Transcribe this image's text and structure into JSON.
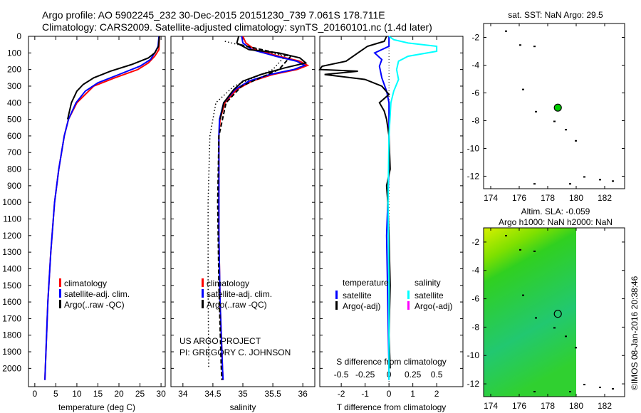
{
  "header": {
    "line1": "Argo profile: AO 5902245_232 30-Dec-2015 20151230_739 7.061S 178.711E",
    "line2": "Climatology: CARS2009. Satellite-adjusted climatology: synTS_20160101.nc (1.4d later)"
  },
  "credit": {
    "project": "US ARGO PROJECT",
    "pi": "PI: GREGORY C. JOHNSON",
    "stamp": "©IMOS 08-Jan-2016 20:38:46"
  },
  "colors": {
    "climatology": "#ff0000",
    "satellite": "#0000ff",
    "argo": "#000000",
    "sal_sat": "#00ffff",
    "sal_argo": "#ff00ff",
    "float": "#00cc00"
  },
  "chart_data": [
    {
      "type": "line",
      "title": "",
      "xlabel": "temperature (deg C)",
      "ylabel": "",
      "xlim": [
        -1.5,
        31
      ],
      "ylim": [
        2110,
        0
      ],
      "xticks": [
        0,
        5,
        10,
        15,
        20,
        25,
        30
      ],
      "yticks": [
        0,
        100,
        200,
        300,
        400,
        500,
        600,
        700,
        800,
        900,
        1000,
        1100,
        1200,
        1300,
        1400,
        1500,
        1600,
        1700,
        1800,
        1900,
        2000
      ],
      "legend": [
        "climatology",
        "satellite-adj. clim.",
        "Argo(..raw -QC)"
      ],
      "series": [
        {
          "name": "climatology",
          "color": "#ff0000",
          "depth": [
            0,
            80,
            120,
            160,
            200,
            250,
            300,
            400,
            500,
            600,
            800,
            1000,
            1300,
            1600,
            2000,
            2070
          ],
          "values": [
            29.6,
            29.5,
            28.5,
            27,
            24.5,
            19,
            14,
            10,
            8,
            7,
            5.7,
            4.7,
            3.8,
            3.1,
            2.5,
            2.4
          ]
        },
        {
          "name": "satellite-adj. clim.",
          "color": "#0000ff",
          "depth": [
            0,
            60,
            100,
            140,
            180,
            230,
            280,
            330,
            400,
            500,
            600,
            800,
            1000,
            1300,
            1600,
            2000,
            2070
          ],
          "values": [
            29.5,
            29.3,
            28.5,
            27.5,
            25,
            20,
            15,
            12,
            9.8,
            8,
            7,
            5.7,
            4.7,
            3.8,
            3.1,
            2.5,
            2.4
          ]
        },
        {
          "name": "Argo(..raw -QC)",
          "color": "#000000",
          "depth": [
            0,
            60,
            100,
            130,
            170,
            210,
            250,
            290,
            330,
            400,
            500
          ],
          "values": [
            29.6,
            29.4,
            28.5,
            27,
            23,
            18,
            14,
            11.5,
            10,
            8.7,
            7.8
          ]
        }
      ]
    },
    {
      "type": "line",
      "xlabel": "salinity",
      "xlim": [
        33.8,
        36.2
      ],
      "ylim": [
        2110,
        0
      ],
      "xticks": [
        34,
        34.5,
        35,
        35.5,
        36
      ],
      "legend": [
        "climatology",
        "satellite-adj. clim.",
        "Argo(..raw -QC)"
      ],
      "series": [
        {
          "name": "climatology",
          "color": "#ff0000",
          "depth": [
            0,
            40,
            80,
            120,
            150,
            175,
            200,
            230,
            270,
            320,
            400,
            500,
            600,
            800,
            1200,
            1600,
            2000,
            2070
          ],
          "values": [
            35.0,
            35.05,
            35.2,
            35.6,
            35.95,
            36.08,
            35.9,
            35.5,
            35.15,
            34.9,
            34.7,
            34.62,
            34.6,
            34.6,
            34.6,
            34.62,
            34.66,
            34.67
          ]
        },
        {
          "name": "satellite-adj. clim.",
          "color": "#0000ff",
          "depth": [
            0,
            40,
            80,
            120,
            150,
            175,
            200,
            230,
            270,
            320,
            400,
            500,
            600,
            800,
            1200,
            1600,
            2000,
            2070
          ],
          "values": [
            34.98,
            35.0,
            35.15,
            35.55,
            35.9,
            36.03,
            35.85,
            35.45,
            35.1,
            34.87,
            34.68,
            34.61,
            34.6,
            34.6,
            34.6,
            34.62,
            34.66,
            34.67
          ]
        },
        {
          "name": "Argo(..raw -QC) solid",
          "color": "#000000",
          "depth": [
            0,
            40,
            80,
            100,
            130,
            160,
            190,
            230,
            270,
            320,
            400,
            500
          ],
          "values": [
            34.93,
            34.9,
            35.1,
            35.6,
            35.95,
            36.05,
            35.7,
            35.3,
            35.0,
            34.85,
            34.68,
            34.62
          ]
        },
        {
          "name": "Argo dashed",
          "color": "#000000",
          "dash": true,
          "depth": [
            50,
            120,
            200,
            300,
            400,
            600,
            1000,
            1500,
            2000,
            2070
          ],
          "values": [
            34.95,
            35.8,
            35.6,
            34.98,
            34.72,
            34.6,
            34.58,
            34.6,
            34.64,
            34.65
          ]
        },
        {
          "name": "dotted",
          "color": "#000000",
          "dot": true,
          "depth": [
            30,
            120,
            200,
            300,
            400,
            600,
            1000,
            1500,
            2000
          ],
          "values": [
            34.7,
            35.7,
            35.5,
            34.85,
            34.55,
            34.45,
            34.42,
            34.42,
            34.43
          ]
        }
      ]
    },
    {
      "type": "line",
      "xlabel": "T difference from climatology",
      "x2label": "S difference from climatology",
      "xlim": [
        -2.9,
        3.1
      ],
      "ylim": [
        2110,
        0
      ],
      "xticks": [
        -2,
        -1,
        0,
        1,
        2
      ],
      "x2ticks": [
        -0.5,
        -0.25,
        0,
        0.25,
        0.5
      ],
      "legend": {
        "temperature": "temperature",
        "salinity": "salinity",
        "items": [
          "satellite",
          "Argo(-adj)",
          "satellite",
          "Argo(-adj)"
        ]
      },
      "series": [
        {
          "name": "T satellite",
          "color": "#0000ff",
          "depth": [
            0,
            60,
            100,
            140,
            180,
            250,
            330,
            400,
            500,
            800,
            1200,
            1600,
            2000,
            2070
          ],
          "values": [
            0,
            0,
            -0.6,
            -0.3,
            -0.4,
            -0.3,
            -0.1,
            0,
            0,
            0,
            -0.1,
            -0.05,
            0,
            0
          ]
        },
        {
          "name": "T Argo(-adj)",
          "color": "#000000",
          "depth": [
            0,
            30,
            60,
            90,
            120,
            150,
            180,
            200,
            210,
            230,
            260,
            300,
            350,
            400,
            450,
            500,
            600,
            800,
            900,
            1000,
            1200,
            1500,
            1800,
            2000
          ],
          "values": [
            -0.1,
            -0.2,
            -0.9,
            -1.2,
            -1.5,
            -1.8,
            -2.8,
            -2.9,
            -1.3,
            -2.7,
            -1.0,
            -0.3,
            0,
            -0.4,
            -0.2,
            -0.1,
            0,
            0.05,
            -0.1,
            -0.05,
            0,
            0.05,
            0,
            0.05
          ]
        },
        {
          "name": "S satellite",
          "color": "#00ffff",
          "depth": [
            0,
            20,
            40,
            60,
            90,
            120,
            150,
            200,
            260,
            330,
            400,
            600,
            1000,
            1500,
            2000,
            2070
          ],
          "values": [
            0,
            0.05,
            0.2,
            0.5,
            0.5,
            0.2,
            0.1,
            0.08,
            0.1,
            0.05,
            0.02,
            0,
            -0.01,
            0,
            0,
            0
          ]
        }
      ]
    },
    {
      "type": "scatter",
      "title": "sat. SST: NaN Argo: 29.5",
      "xlim": [
        173.5,
        183.4
      ],
      "ylim": [
        -12.9,
        -1
      ],
      "xticks": [
        174,
        176,
        178,
        180,
        182
      ],
      "yticks": [
        -2,
        -4,
        -6,
        -8,
        -10,
        -12
      ],
      "point": [
        178.711,
        -7.061
      ]
    },
    {
      "type": "heatmap",
      "title": "Altim. SLA: -0.059",
      "subtitle": "Argo h1000: NaN h2000: NaN",
      "xlim": [
        173.5,
        183.4
      ],
      "ylim": [
        -12.9,
        -1
      ],
      "xticks": [
        174,
        176,
        178,
        180,
        182
      ],
      "yticks": [
        -2,
        -4,
        -6,
        -8,
        -10,
        -12
      ],
      "point": [
        178.711,
        -7.061
      ]
    }
  ]
}
